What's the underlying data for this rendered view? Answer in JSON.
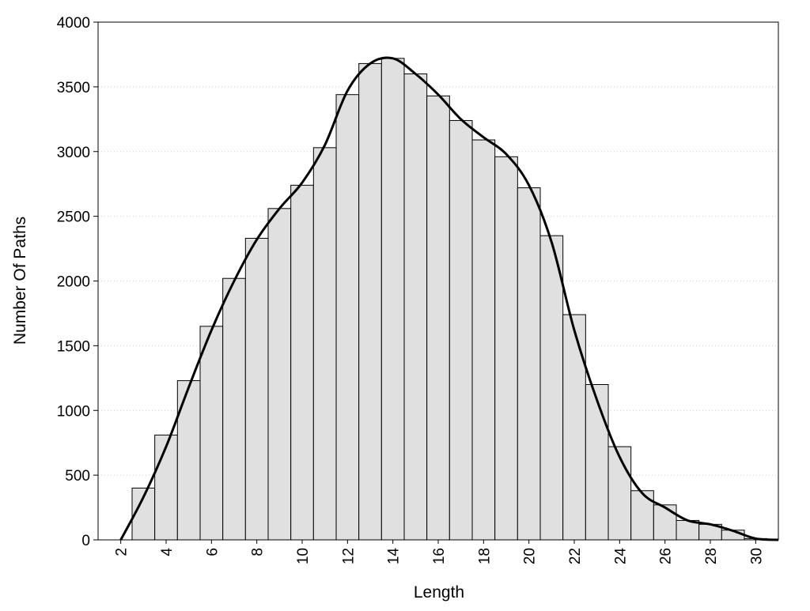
{
  "chart_data": {
    "type": "histogram",
    "xlabel": "Length",
    "ylabel": "Number Of Paths",
    "bins": [
      2.5,
      3.5,
      4.5,
      5.5,
      6.5,
      7.5,
      8.5,
      9.5,
      10.5,
      11.5,
      12.5,
      13.5,
      14.5,
      15.5,
      16.5,
      17.5,
      18.5,
      19.5,
      20.5,
      21.5,
      22.5,
      23.5,
      24.5,
      25.5,
      26.5,
      27.5,
      28.5,
      29.5,
      30.5
    ],
    "counts": [
      400,
      810,
      1230,
      1650,
      2020,
      2330,
      2560,
      2740,
      3030,
      3440,
      3680,
      3720,
      3600,
      3430,
      3240,
      3090,
      2960,
      2720,
      2350,
      1740,
      1200,
      720,
      380,
      270,
      150,
      120,
      75,
      10
    ],
    "color": "#e0e0e0",
    "line": {
      "type": "line",
      "color": "#000000",
      "x": [
        2,
        3,
        4,
        5,
        6,
        7,
        8,
        9,
        10,
        11,
        12,
        13,
        14,
        15,
        16,
        17,
        18,
        19,
        20,
        21,
        22,
        23,
        24,
        25,
        26,
        27,
        28,
        29,
        30,
        31
      ],
      "values": [
        0,
        330,
        720,
        1180,
        1620,
        2000,
        2320,
        2560,
        2760,
        3050,
        3470,
        3680,
        3720,
        3600,
        3440,
        3250,
        3110,
        2980,
        2740,
        2300,
        1620,
        1080,
        640,
        360,
        250,
        150,
        120,
        70,
        10,
        0
      ]
    },
    "xlim": [
      1,
      31
    ],
    "xticks": [
      2,
      4,
      6,
      8,
      10,
      12,
      14,
      16,
      18,
      20,
      22,
      24,
      26,
      28,
      30
    ],
    "ylim": [
      0,
      4000
    ],
    "yticks": [
      0,
      500,
      1000,
      1500,
      2000,
      2500,
      3000,
      3500,
      4000
    ],
    "grid": true
  }
}
